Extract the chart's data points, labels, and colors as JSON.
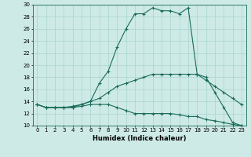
{
  "xlabel": "Humidex (Indice chaleur)",
  "xlim": [
    -0.5,
    23.5
  ],
  "ylim": [
    10,
    30
  ],
  "xticks": [
    0,
    1,
    2,
    3,
    4,
    5,
    6,
    7,
    8,
    9,
    10,
    11,
    12,
    13,
    14,
    15,
    16,
    17,
    18,
    19,
    20,
    21,
    22,
    23
  ],
  "yticks": [
    10,
    12,
    14,
    16,
    18,
    20,
    22,
    24,
    26,
    28,
    30
  ],
  "bg_color": "#ceeae6",
  "line_color": "#1a6b5a",
  "grid_color": "#a8d4d0",
  "curve1_x": [
    0,
    1,
    2,
    3,
    4,
    5,
    6,
    7,
    8,
    9,
    10,
    11,
    12,
    13,
    14,
    15,
    16,
    17,
    18,
    19,
    20,
    21,
    22,
    23
  ],
  "curve1_y": [
    13.5,
    13.0,
    13.0,
    13.0,
    13.0,
    13.5,
    14.0,
    17.0,
    19.0,
    23.0,
    26.0,
    28.5,
    28.5,
    29.5,
    29.0,
    29.0,
    28.5,
    29.5,
    18.5,
    18.0,
    15.5,
    13.0,
    10.5,
    10.0
  ],
  "curve2_x": [
    0,
    1,
    2,
    3,
    4,
    5,
    6,
    7,
    8,
    9,
    10,
    11,
    12,
    13,
    14,
    15,
    16,
    17,
    18,
    19,
    20,
    21,
    22,
    23
  ],
  "curve2_y": [
    13.5,
    13.0,
    13.0,
    13.0,
    13.2,
    13.5,
    14.0,
    14.5,
    15.5,
    16.5,
    17.0,
    17.5,
    18.0,
    18.5,
    18.5,
    18.5,
    18.5,
    18.5,
    18.5,
    17.5,
    16.5,
    15.5,
    14.5,
    13.5
  ],
  "curve3_x": [
    0,
    1,
    2,
    3,
    4,
    5,
    6,
    7,
    8,
    9,
    10,
    11,
    12,
    13,
    14,
    15,
    16,
    17,
    18,
    19,
    20,
    21,
    22,
    23
  ],
  "curve3_y": [
    13.5,
    13.0,
    13.0,
    13.0,
    13.0,
    13.2,
    13.5,
    13.5,
    13.5,
    13.0,
    12.5,
    12.0,
    12.0,
    12.0,
    12.0,
    12.0,
    11.8,
    11.5,
    11.5,
    11.0,
    10.8,
    10.5,
    10.2,
    10.0
  ],
  "tick_fontsize": 5.0,
  "xlabel_fontsize": 6.0
}
